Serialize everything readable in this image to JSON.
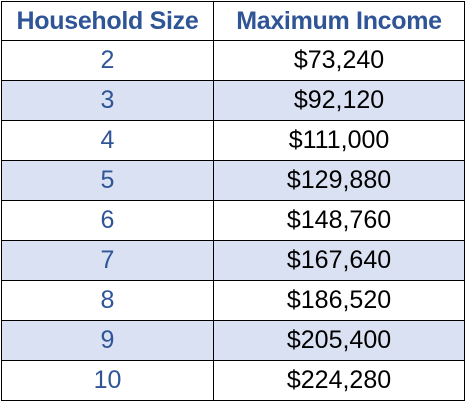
{
  "table": {
    "headers": [
      "Household Size",
      "Maximum Income"
    ],
    "rows": [
      {
        "size": "2",
        "income": "$73,240"
      },
      {
        "size": "3",
        "income": "$92,120"
      },
      {
        "size": "4",
        "income": "$111,000"
      },
      {
        "size": "5",
        "income": "$129,880"
      },
      {
        "size": "6",
        "income": "$148,760"
      },
      {
        "size": "7",
        "income": "$167,640"
      },
      {
        "size": "8",
        "income": "$186,520"
      },
      {
        "size": "9",
        "income": "$205,400"
      },
      {
        "size": "10",
        "income": "$224,280"
      }
    ]
  },
  "colors": {
    "header_text": "#2f5597",
    "size_text": "#2f5597",
    "income_text": "#000000",
    "stripe_fill": "#d9e1f2",
    "border": "#000000"
  }
}
